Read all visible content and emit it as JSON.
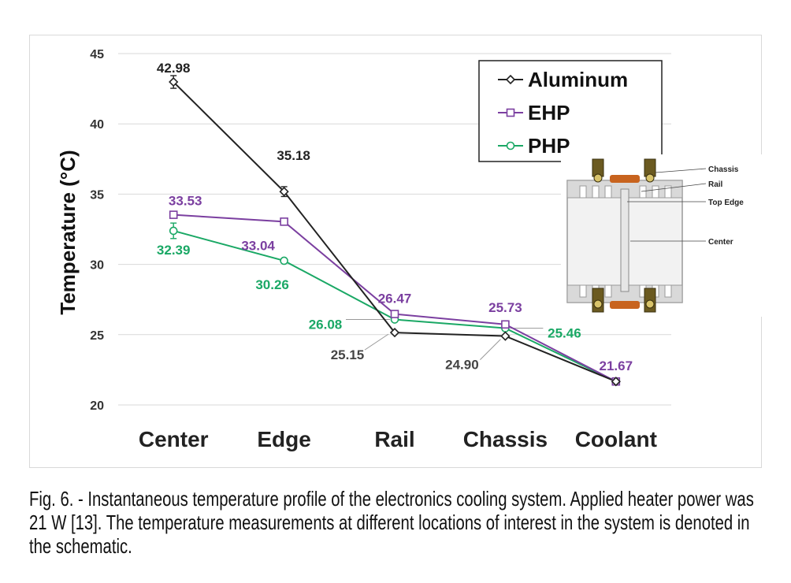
{
  "chart_data": {
    "type": "line",
    "categories": [
      "Center",
      "Edge",
      "Rail",
      "Chassis",
      "Coolant"
    ],
    "ylabel": "Temperature (°C)",
    "ylim": [
      20,
      45
    ],
    "yticks": [
      "20",
      "25",
      "30",
      "35",
      "40",
      "45"
    ],
    "grid": true,
    "legend_position": "top-right",
    "series": [
      {
        "name": "Aluminum",
        "color": "#222222",
        "marker": "diamond",
        "values": [
          42.98,
          35.18,
          25.15,
          24.9,
          21.67
        ]
      },
      {
        "name": "EHP",
        "color": "#7b3fa0",
        "marker": "square",
        "values": [
          33.53,
          33.04,
          26.47,
          25.73,
          21.67
        ]
      },
      {
        "name": "PHP",
        "color": "#1aa865",
        "marker": "circle",
        "values": [
          32.39,
          30.26,
          26.08,
          25.46,
          21.67
        ]
      }
    ],
    "data_labels": [
      {
        "text": "42.98",
        "series": 0,
        "point": 0,
        "color": "#222222"
      },
      {
        "text": "35.18",
        "series": 0,
        "point": 1,
        "color": "#222222"
      },
      {
        "text": "25.15",
        "series": 0,
        "point": 2,
        "color": "#444444"
      },
      {
        "text": "24.90",
        "series": 0,
        "point": 3,
        "color": "#444444"
      },
      {
        "text": "33.53",
        "series": 1,
        "point": 0,
        "color": "#7b3fa0"
      },
      {
        "text": "33.04",
        "series": 1,
        "point": 1,
        "color": "#7b3fa0"
      },
      {
        "text": "26.47",
        "series": 1,
        "point": 2,
        "color": "#7b3fa0"
      },
      {
        "text": "25.73",
        "series": 1,
        "point": 3,
        "color": "#7b3fa0"
      },
      {
        "text": "21.67",
        "series": 1,
        "point": 4,
        "color": "#7b3fa0"
      },
      {
        "text": "32.39",
        "series": 2,
        "point": 0,
        "color": "#1aa865"
      },
      {
        "text": "30.26",
        "series": 2,
        "point": 1,
        "color": "#1aa865"
      },
      {
        "text": "26.08",
        "series": 2,
        "point": 2,
        "color": "#1aa865"
      },
      {
        "text": "25.46",
        "series": 2,
        "point": 3,
        "color": "#1aa865"
      }
    ]
  },
  "schematic": {
    "labels": [
      "Chassis",
      "Rail",
      "Top Edge",
      "Center"
    ]
  },
  "caption": "Fig. 6. - Instantaneous temperature profile of the electronics cooling system. Applied heater power was 21 W [13]. The temperature measurements at different locations of interest in the system is denoted in the schematic."
}
